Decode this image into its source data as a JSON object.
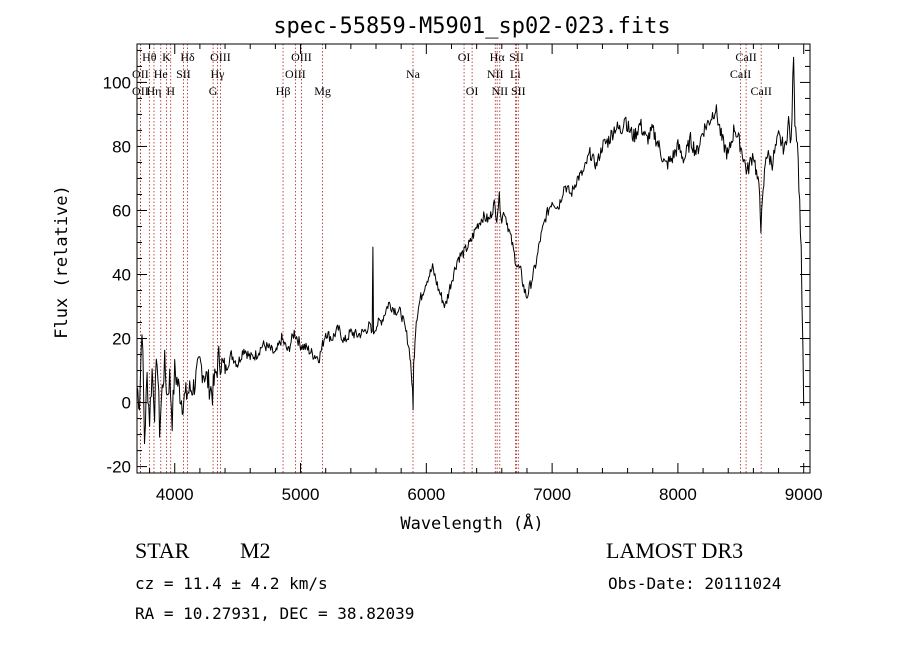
{
  "chart_data": {
    "type": "line",
    "title": "spec-55859-M5901_sp02-023.fits",
    "xlabel": "Wavelength (Å)",
    "ylabel": "Flux (relative)",
    "xlim": [
      3700,
      9050
    ],
    "ylim": [
      -22,
      112
    ],
    "xticks": [
      4000,
      5000,
      6000,
      7000,
      8000,
      9000
    ],
    "yticks": [
      -20,
      0,
      20,
      40,
      60,
      80,
      100
    ],
    "series": [
      {
        "name": "flux",
        "x": [
          3700,
          3720,
          3740,
          3760,
          3780,
          3800,
          3820,
          3840,
          3860,
          3880,
          3900,
          3920,
          3940,
          3960,
          3980,
          4000,
          4030,
          4060,
          4100,
          4150,
          4200,
          4250,
          4300,
          4350,
          4400,
          4450,
          4500,
          4550,
          4600,
          4650,
          4700,
          4750,
          4800,
          4850,
          4900,
          4950,
          5000,
          5050,
          5100,
          5150,
          5200,
          5250,
          5300,
          5350,
          5400,
          5450,
          5500,
          5550,
          5570,
          5575,
          5580,
          5600,
          5650,
          5700,
          5750,
          5800,
          5850,
          5870,
          5880,
          5890,
          5895,
          5900,
          5910,
          5920,
          5950,
          6000,
          6050,
          6100,
          6150,
          6200,
          6250,
          6300,
          6350,
          6400,
          6450,
          6500,
          6540,
          6560,
          6580,
          6600,
          6620,
          6650,
          6680,
          6700,
          6720,
          6750,
          6780,
          6800,
          6850,
          6880,
          6900,
          6950,
          7000,
          7050,
          7100,
          7150,
          7200,
          7250,
          7300,
          7350,
          7400,
          7450,
          7500,
          7550,
          7580,
          7600,
          7650,
          7700,
          7750,
          7800,
          7850,
          7900,
          7950,
          8000,
          8050,
          8100,
          8150,
          8200,
          8250,
          8300,
          8350,
          8400,
          8450,
          8500,
          8550,
          8600,
          8650,
          8660,
          8700,
          8750,
          8800,
          8850,
          8880,
          8900,
          8920,
          8930,
          8950,
          8980,
          9000
        ],
        "y": [
          5,
          0,
          25,
          -12,
          8,
          -5,
          10,
          -2,
          15,
          -8,
          4,
          12,
          2,
          8,
          -5,
          10,
          5,
          0,
          3,
          5,
          12,
          8,
          3,
          14,
          10,
          15,
          12,
          17,
          14,
          15,
          18,
          17,
          15,
          20,
          16,
          22,
          18,
          17,
          15,
          14,
          22,
          20,
          23,
          19,
          22,
          21,
          22,
          24,
          21,
          50,
          22,
          24,
          26,
          31,
          29,
          28,
          20,
          15,
          10,
          3,
          -1,
          12,
          20,
          26,
          32,
          38,
          42,
          35,
          30,
          38,
          45,
          47,
          50,
          55,
          58,
          57,
          62,
          58,
          64,
          57,
          60,
          55,
          50,
          46,
          43,
          41,
          35,
          33,
          40,
          45,
          50,
          58,
          63,
          61,
          68,
          65,
          70,
          72,
          78,
          74,
          80,
          82,
          86,
          85,
          90,
          86,
          83,
          87,
          82,
          85,
          80,
          74,
          76,
          80,
          76,
          82,
          78,
          85,
          88,
          92,
          82,
          77,
          86,
          80,
          72,
          78,
          65,
          55,
          78,
          75,
          83,
          79,
          88,
          80,
          110,
          88,
          82,
          48,
          -1
        ]
      }
    ],
    "lines": [
      {
        "label": "Hθ",
        "x": 3798,
        "row": 1
      },
      {
        "label": "OII",
        "x": 3727,
        "row": 2
      },
      {
        "label": "OII",
        "x": 3727,
        "row": 3
      },
      {
        "label": "Hη",
        "x": 3835,
        "row": 3
      },
      {
        "label": "K",
        "x": 3934,
        "row": 1
      },
      {
        "label": "He",
        "x": 3889,
        "row": 2
      },
      {
        "label": "H",
        "x": 3968,
        "row": 3
      },
      {
        "label": "Hδ",
        "x": 4102,
        "row": 1
      },
      {
        "label": "SII",
        "x": 4069,
        "row": 2
      },
      {
        "label": "OIII",
        "x": 4363,
        "row": 1
      },
      {
        "label": "Hγ",
        "x": 4340,
        "row": 2
      },
      {
        "label": "G",
        "x": 4305,
        "row": 3
      },
      {
        "label": "OIII",
        "x": 5007,
        "row": 1
      },
      {
        "label": "OIII",
        "x": 4959,
        "row": 2
      },
      {
        "label": "Hβ",
        "x": 4861,
        "row": 3
      },
      {
        "label": "Mg",
        "x": 5175,
        "row": 3
      },
      {
        "label": "Na",
        "x": 5894,
        "row": 2
      },
      {
        "label": "OI",
        "x": 6300,
        "row": 1
      },
      {
        "label": "OI",
        "x": 6364,
        "row": 3
      },
      {
        "label": "Hα",
        "x": 6563,
        "row": 1
      },
      {
        "label": "NII",
        "x": 6548,
        "row": 2
      },
      {
        "label": "NII",
        "x": 6584,
        "row": 3
      },
      {
        "label": "SII",
        "x": 6717,
        "row": 1
      },
      {
        "label": "Li",
        "x": 6708,
        "row": 2
      },
      {
        "label": "SII",
        "x": 6731,
        "row": 3
      },
      {
        "label": "CaII",
        "x": 8542,
        "row": 1
      },
      {
        "label": "CaII",
        "x": 8498,
        "row": 2
      },
      {
        "label": "CaII",
        "x": 8662,
        "row": 3
      }
    ],
    "line_color": "#aa2222",
    "series_color": "#000000"
  },
  "info": {
    "object_class": "STAR",
    "subclass": "M2",
    "survey": "LAMOST DR3",
    "cz": "cz = 11.4 ± 4.2 km/s",
    "obs_date": "Obs-Date: 20111024",
    "coords": "RA =  10.27931, DEC =  38.82039"
  }
}
